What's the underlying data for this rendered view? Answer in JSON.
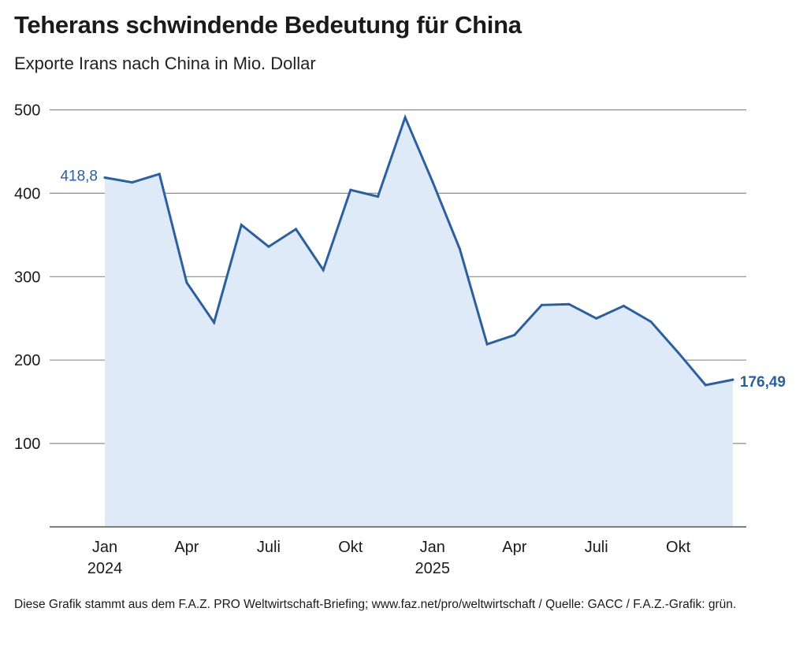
{
  "title": "Teherans schwindende Bedeutung für China",
  "subtitle": "Exporte Irans nach China in Mio. Dollar",
  "footer": "Diese Grafik stammt aus dem F.A.Z. PRO Weltwirtschaft-Briefing; www.faz.net/pro/weltwirtschaft / Quelle: GACC / F.A.Z.-Grafik: grün.",
  "colors": {
    "line": "#2b5f9e",
    "area": "#deeaf7",
    "grid": "#8c8c8c",
    "axis": "#555555"
  },
  "chart_data": {
    "type": "area",
    "title": "Teherans schwindende Bedeutung für China",
    "subtitle": "Exporte Irans nach China in Mio. Dollar",
    "xlabel": "",
    "ylabel": "",
    "ylim": [
      0,
      500
    ],
    "yticks": [
      100,
      200,
      300,
      400,
      500
    ],
    "ytick_labels": [
      "100",
      "200",
      "300",
      "400",
      "500"
    ],
    "grid": true,
    "x": [
      "2024-01",
      "2024-02",
      "2024-03",
      "2024-04",
      "2024-05",
      "2024-06",
      "2024-07",
      "2024-08",
      "2024-09",
      "2024-10",
      "2024-11",
      "2024-12",
      "2025-01",
      "2025-02",
      "2025-03",
      "2025-04",
      "2025-05",
      "2025-06",
      "2025-07",
      "2025-08",
      "2025-09",
      "2025-10",
      "2025-11",
      "2025-12"
    ],
    "xticks": [
      {
        "x": "2024-01",
        "label": "Jan",
        "sublabel": "2024"
      },
      {
        "x": "2024-04",
        "label": "Apr",
        "sublabel": ""
      },
      {
        "x": "2024-07",
        "label": "Juli",
        "sublabel": ""
      },
      {
        "x": "2024-10",
        "label": "Okt",
        "sublabel": ""
      },
      {
        "x": "2025-01",
        "label": "Jan",
        "sublabel": "2025"
      },
      {
        "x": "2025-04",
        "label": "Apr",
        "sublabel": ""
      },
      {
        "x": "2025-07",
        "label": "Juli",
        "sublabel": ""
      },
      {
        "x": "2025-10",
        "label": "Okt",
        "sublabel": ""
      }
    ],
    "series": [
      {
        "values": [
          418.8,
          413,
          423,
          293,
          245,
          362,
          336,
          357,
          308,
          404,
          396,
          491,
          414,
          333,
          219,
          230,
          266,
          267,
          250,
          265,
          246,
          209,
          170,
          176.49
        ]
      }
    ],
    "annotations": [
      {
        "x": "2024-01",
        "value": 418.8,
        "text": "418,8",
        "bold": false
      },
      {
        "x": "2025-12",
        "value": 176.49,
        "text": "176,49",
        "bold": true
      }
    ]
  }
}
